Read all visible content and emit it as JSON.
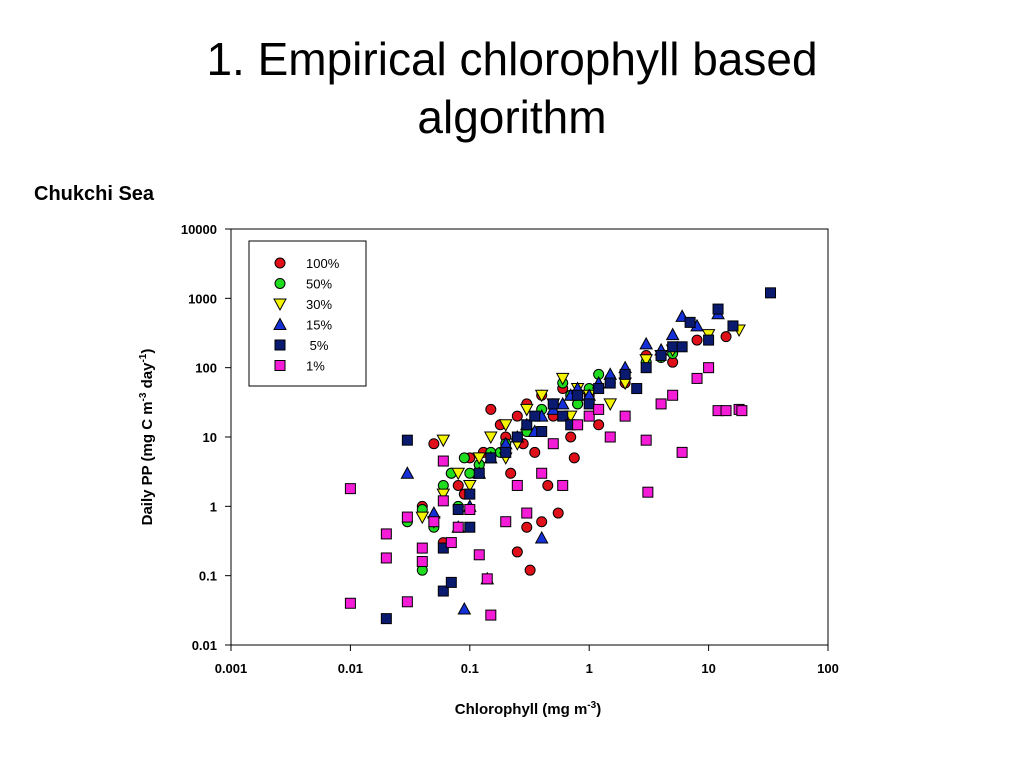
{
  "slide": {
    "title_line1": "1. Empirical chlorophyll based",
    "title_line2": "algorithm",
    "region": "Chukchi Sea"
  },
  "chart_data": {
    "type": "scatter",
    "xscale": "log",
    "yscale": "log",
    "xlabel": "Chlorophyll (mg m",
    "xlabel_sup": "-3",
    "xlabel_tail": ")",
    "ylabel": "Daily PP (mg C m",
    "ylabel_sup1": "-3",
    "ylabel_mid": " day",
    "ylabel_sup2": "-1",
    "ylabel_tail": ")",
    "xlim": [
      0.001,
      100
    ],
    "ylim": [
      0.01,
      10000
    ],
    "xticks": [
      "0.001",
      "0.01",
      "0.1",
      "1",
      "10",
      "100"
    ],
    "yticks": [
      "0.01",
      "0.1",
      "1",
      "10",
      "100",
      "1000",
      "10000"
    ],
    "grid": false,
    "legend_position": "top-left",
    "series": [
      {
        "name": "100%",
        "marker": "circle",
        "color": "#e0101a",
        "x": [
          0.04,
          0.06,
          0.08,
          0.1,
          0.12,
          0.15,
          0.2,
          0.25,
          0.3,
          0.35,
          0.4,
          0.5,
          0.6,
          0.7,
          0.8,
          1.0,
          1.2,
          1.5,
          2.0,
          3.0,
          5.0,
          8.0,
          14.0,
          0.05,
          0.07,
          0.09,
          0.13,
          0.18,
          0.22,
          0.28,
          0.32,
          0.45,
          0.55,
          0.75,
          0.25,
          0.4,
          0.3
        ],
        "y": [
          1,
          0.3,
          2,
          5,
          4,
          25,
          10,
          20,
          30,
          6,
          40,
          20,
          50,
          10,
          30,
          40,
          15,
          70,
          60,
          150,
          120,
          250,
          280,
          8,
          3,
          1.5,
          6,
          15,
          3,
          8,
          0.12,
          2,
          0.8,
          5,
          0.22,
          0.6,
          0.5
        ]
      },
      {
        "name": "50%",
        "marker": "circle",
        "color": "#1fdc1f",
        "x": [
          0.03,
          0.04,
          0.05,
          0.06,
          0.07,
          0.08,
          0.1,
          0.12,
          0.15,
          0.2,
          0.25,
          0.3,
          0.4,
          0.5,
          0.6,
          0.7,
          0.8,
          1.0,
          1.2,
          1.5,
          2.0,
          3.0,
          4.0,
          5.0,
          0.04,
          0.09,
          0.18
        ],
        "y": [
          0.6,
          0.9,
          0.5,
          2,
          3,
          1,
          3,
          4,
          6,
          8,
          10,
          12,
          25,
          30,
          60,
          40,
          30,
          50,
          80,
          60,
          80,
          120,
          140,
          160,
          0.12,
          5,
          6
        ]
      },
      {
        "name": "30%",
        "marker": "triangle-down",
        "color": "#f4f400",
        "x": [
          0.04,
          0.05,
          0.06,
          0.08,
          0.1,
          0.12,
          0.15,
          0.2,
          0.25,
          0.3,
          0.4,
          0.5,
          0.6,
          0.7,
          0.8,
          1.0,
          1.5,
          2.0,
          3.0,
          4.0,
          5.0,
          10.0,
          18.0,
          0.06,
          0.2
        ],
        "y": [
          0.7,
          0.6,
          1.5,
          3,
          2,
          5,
          10,
          15,
          8,
          25,
          40,
          30,
          70,
          20,
          50,
          40,
          30,
          60,
          130,
          150,
          180,
          300,
          350,
          9,
          5
        ]
      },
      {
        "name": "15%",
        "marker": "triangle-up",
        "color": "#1530d6",
        "x": [
          0.03,
          0.05,
          0.08,
          0.09,
          0.1,
          0.12,
          0.15,
          0.2,
          0.25,
          0.3,
          0.35,
          0.4,
          0.5,
          0.6,
          0.7,
          0.8,
          1.0,
          1.2,
          1.5,
          2.0,
          3.0,
          4.0,
          5.0,
          6.0,
          8.0,
          12.0,
          0.14,
          0.4
        ],
        "y": [
          3,
          0.8,
          0.5,
          0.033,
          1,
          3,
          5,
          8,
          10,
          15,
          12,
          20,
          25,
          30,
          40,
          50,
          40,
          60,
          80,
          100,
          220,
          180,
          300,
          550,
          400,
          600,
          0.09,
          0.35
        ]
      },
      {
        "name": " 5%",
        "marker": "square",
        "color": "#0a1a6e",
        "x": [
          0.02,
          0.03,
          0.06,
          0.07,
          0.08,
          0.1,
          0.12,
          0.15,
          0.2,
          0.25,
          0.3,
          0.35,
          0.4,
          0.5,
          0.6,
          0.7,
          0.8,
          1.0,
          1.2,
          1.5,
          2.0,
          2.5,
          3.0,
          4.0,
          5.0,
          6.0,
          7.0,
          10.0,
          12.0,
          16.0,
          33.0,
          0.06,
          0.1
        ],
        "y": [
          0.024,
          9,
          0.06,
          0.08,
          0.9,
          1.5,
          3,
          5,
          6,
          10,
          15,
          20,
          12,
          30,
          20,
          15,
          40,
          30,
          50,
          60,
          80,
          50,
          100,
          150,
          200,
          200,
          450,
          250,
          700,
          400,
          1200,
          0.25,
          0.5
        ]
      },
      {
        "name": "1%",
        "marker": "square",
        "color": "#f41cd7",
        "x": [
          0.01,
          0.01,
          0.02,
          0.02,
          0.03,
          0.04,
          0.04,
          0.05,
          0.06,
          0.07,
          0.08,
          0.1,
          0.12,
          0.14,
          0.15,
          0.2,
          0.25,
          0.3,
          0.4,
          0.5,
          0.6,
          0.8,
          1.0,
          1.2,
          1.5,
          2.0,
          3.0,
          3.1,
          4.0,
          5.0,
          6.0,
          8.0,
          10.0,
          12.0,
          14.0,
          18.0,
          19.0,
          0.06,
          0.03
        ],
        "y": [
          0.04,
          1.8,
          0.4,
          0.18,
          0.042,
          0.25,
          0.16,
          0.6,
          4.5,
          0.3,
          0.5,
          0.9,
          0.2,
          0.09,
          0.027,
          0.6,
          2,
          0.8,
          3,
          8,
          2,
          15,
          20,
          25,
          10,
          20,
          9,
          1.6,
          30,
          40,
          6,
          70,
          100,
          24,
          24,
          25,
          24,
          1.2,
          0.7
        ]
      }
    ]
  }
}
